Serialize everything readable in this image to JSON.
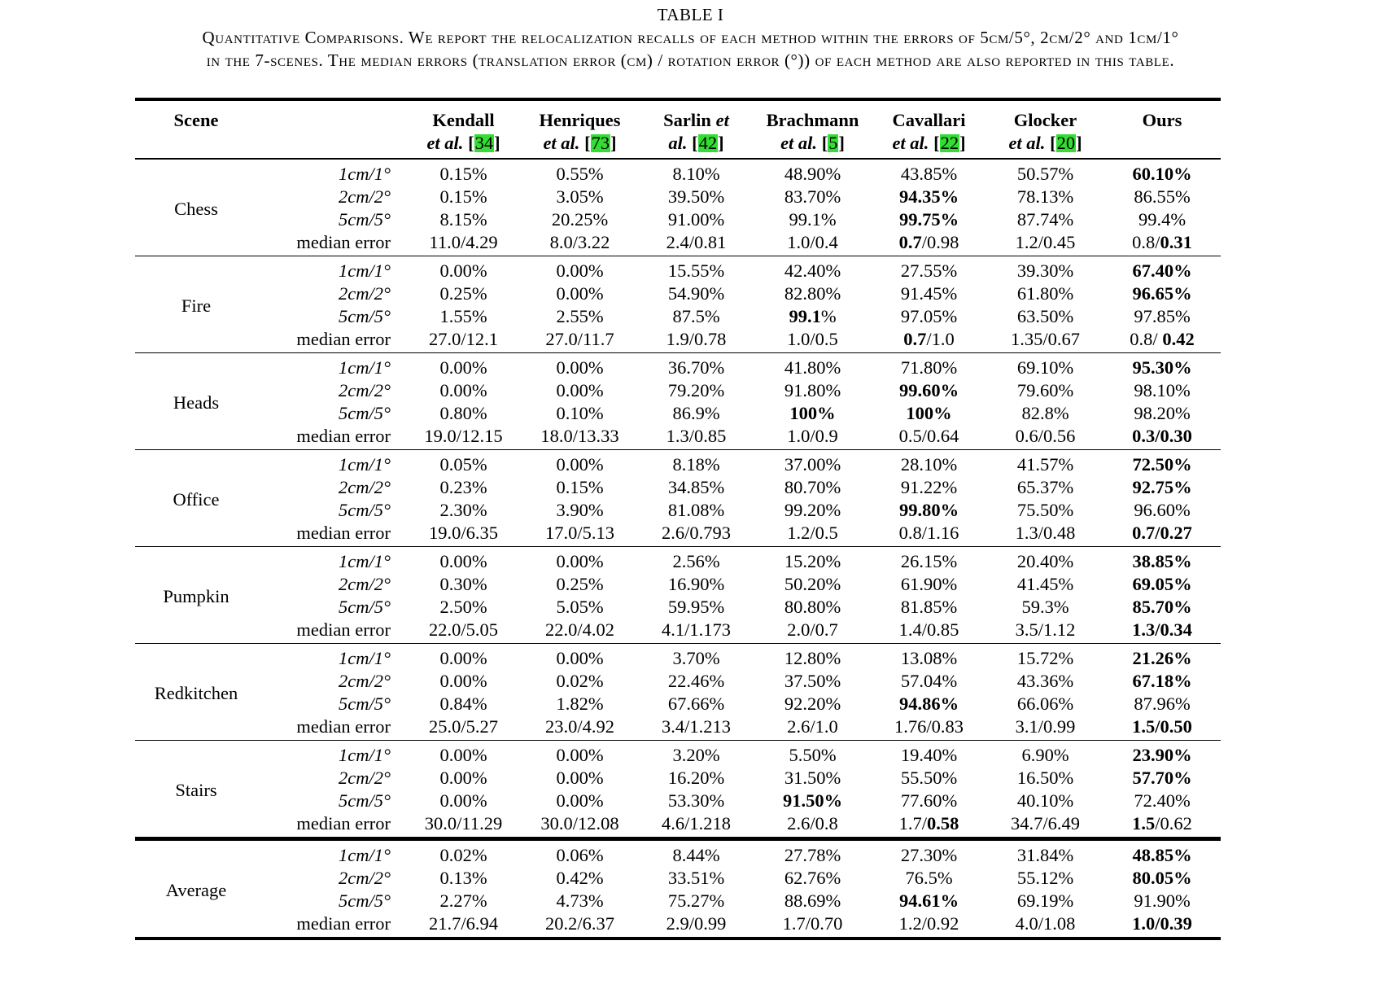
{
  "caption": {
    "table_number": "TABLE I",
    "line1": "Quantitative Comparisons. We report the relocalization recalls of each method within the errors of 5cm/5°, 2cm/2° and 1cm/1°",
    "line2": "in the 7-scenes. The median errors (translation error (cm) / rotation error (°)) of each method are also reported in this table."
  },
  "header": {
    "scene": "Scene",
    "methods": [
      {
        "name": "Kendall",
        "et": "et al.",
        "ref": "34"
      },
      {
        "name": "Henriques",
        "et": "et al.",
        "ref": "73"
      },
      {
        "name": "Sarlin et",
        "et": "al.",
        "ref": "42"
      },
      {
        "name": "Brachmann",
        "et": "et al.",
        "ref": "5"
      },
      {
        "name": "Cavallari",
        "et": "et al.",
        "ref": "22"
      },
      {
        "name": "Glocker",
        "et": "et al.",
        "ref": "20"
      },
      {
        "name": "Ours",
        "et": "",
        "ref": ""
      }
    ]
  },
  "metrics": [
    "1cm/1°",
    "2cm/2°",
    "5cm/5°",
    "median error"
  ],
  "groups": [
    {
      "scene": "Chess",
      "rows": [
        [
          "0.15%",
          "0.55%",
          "8.10%",
          "48.90%",
          "43.85%",
          "50.57%",
          "**60.10%**"
        ],
        [
          "0.15%",
          "3.05%",
          "39.50%",
          "83.70%",
          "**94.35%**",
          "78.13%",
          "86.55%"
        ],
        [
          "8.15%",
          "20.25%",
          "91.00%",
          "99.1%",
          "**99.75%**",
          "87.74%",
          "99.4%"
        ],
        [
          "11.0/4.29",
          "8.0/3.22",
          "2.4/0.81",
          "1.0/0.4",
          "**0.7**/0.98",
          "1.2/0.45",
          "0.8/**0.31**"
        ]
      ]
    },
    {
      "scene": "Fire",
      "rows": [
        [
          "0.00%",
          "0.00%",
          "15.55%",
          "42.40%",
          "27.55%",
          "39.30%",
          "**67.40%**"
        ],
        [
          "0.25%",
          "0.00%",
          "54.90%",
          "82.80%",
          "91.45%",
          "61.80%",
          "**96.65%**"
        ],
        [
          "1.55%",
          "2.55%",
          "87.5%",
          "**99.1**%",
          "97.05%",
          "63.50%",
          "97.85%"
        ],
        [
          "27.0/12.1",
          "27.0/11.7",
          "1.9/0.78",
          "1.0/0.5",
          "**0.7**/1.0",
          "1.35/0.67",
          "0.8/ **0.42**"
        ]
      ]
    },
    {
      "scene": "Heads",
      "rows": [
        [
          "0.00%",
          "0.00%",
          "36.70%",
          "41.80%",
          "71.80%",
          "69.10%",
          "**95.30%**"
        ],
        [
          "0.00%",
          "0.00%",
          "79.20%",
          "91.80%",
          "**99.60%**",
          "79.60%",
          "98.10%"
        ],
        [
          "0.80%",
          "0.10%",
          "86.9%",
          "**100%**",
          "**100%**",
          "82.8%",
          "98.20%"
        ],
        [
          "19.0/12.15",
          "18.0/13.33",
          "1.3/0.85",
          "1.0/0.9",
          "0.5/0.64",
          "0.6/0.56",
          "**0.3/0.30**"
        ]
      ]
    },
    {
      "scene": "Office",
      "rows": [
        [
          "0.05%",
          "0.00%",
          "8.18%",
          "37.00%",
          "28.10%",
          "41.57%",
          "**72.50%**"
        ],
        [
          "0.23%",
          "0.15%",
          "34.85%",
          "80.70%",
          "91.22%",
          "65.37%",
          "**92.75%**"
        ],
        [
          "2.30%",
          "3.90%",
          "81.08%",
          "99.20%",
          "**99.80%**",
          "75.50%",
          "96.60%"
        ],
        [
          "19.0/6.35",
          "17.0/5.13",
          "2.6/0.793",
          "1.2/0.5",
          "0.8/1.16",
          "1.3/0.48",
          "**0.7/0.27**"
        ]
      ]
    },
    {
      "scene": "Pumpkin",
      "rows": [
        [
          "0.00%",
          "0.00%",
          "2.56%",
          "15.20%",
          "26.15%",
          "20.40%",
          "**38.85%**"
        ],
        [
          "0.30%",
          "0.25%",
          "16.90%",
          "50.20%",
          "61.90%",
          "41.45%",
          "**69.05%**"
        ],
        [
          "2.50%",
          "5.05%",
          "59.95%",
          "80.80%",
          "81.85%",
          "59.3%",
          "**85.70%**"
        ],
        [
          "22.0/5.05",
          "22.0/4.02",
          "4.1/1.173",
          "2.0/0.7",
          "1.4/0.85",
          "3.5/1.12",
          "**1.3/0.34**"
        ]
      ]
    },
    {
      "scene": "Redkitchen",
      "rows": [
        [
          "0.00%",
          "0.00%",
          "3.70%",
          "12.80%",
          "13.08%",
          "15.72%",
          "**21.26%**"
        ],
        [
          "0.00%",
          "0.02%",
          "22.46%",
          "37.50%",
          "57.04%",
          "43.36%",
          "**67.18%**"
        ],
        [
          "0.84%",
          "1.82%",
          "67.66%",
          "92.20%",
          "**94.86%**",
          "66.06%",
          "87.96%"
        ],
        [
          "25.0/5.27",
          "23.0/4.92",
          "3.4/1.213",
          "2.6/1.0",
          "1.76/0.83",
          "3.1/0.99",
          "**1.5/0.50**"
        ]
      ]
    },
    {
      "scene": "Stairs",
      "rows": [
        [
          "0.00%",
          "0.00%",
          "3.20%",
          "5.50%",
          "19.40%",
          "6.90%",
          "**23.90%**"
        ],
        [
          "0.00%",
          "0.00%",
          "16.20%",
          "31.50%",
          "55.50%",
          "16.50%",
          "**57.70%**"
        ],
        [
          "0.00%",
          "0.00%",
          "53.30%",
          "**91.50%**",
          "77.60%",
          "40.10%",
          "72.40%"
        ],
        [
          "30.0/11.29",
          "30.0/12.08",
          "4.6/1.218",
          "2.6/0.8",
          "1.7/**0.58**",
          "34.7/6.49",
          "**1.5**/0.62"
        ]
      ]
    },
    {
      "scene": "Average",
      "rows": [
        [
          "0.02%",
          "0.06%",
          "8.44%",
          "27.78%",
          "27.30%",
          "31.84%",
          "**48.85%**"
        ],
        [
          "0.13%",
          "0.42%",
          "33.51%",
          "62.76%",
          "76.5%",
          "55.12%",
          "**80.05%**"
        ],
        [
          "2.27%",
          "4.73%",
          "75.27%",
          "88.69%",
          "**94.61%**",
          "69.19%",
          "91.90%"
        ],
        [
          "21.7/6.94",
          "20.2/6.37",
          "2.9/0.99",
          "1.7/0.70",
          "1.2/0.92",
          "4.0/1.08",
          "**1.0/0.39**"
        ]
      ]
    }
  ]
}
